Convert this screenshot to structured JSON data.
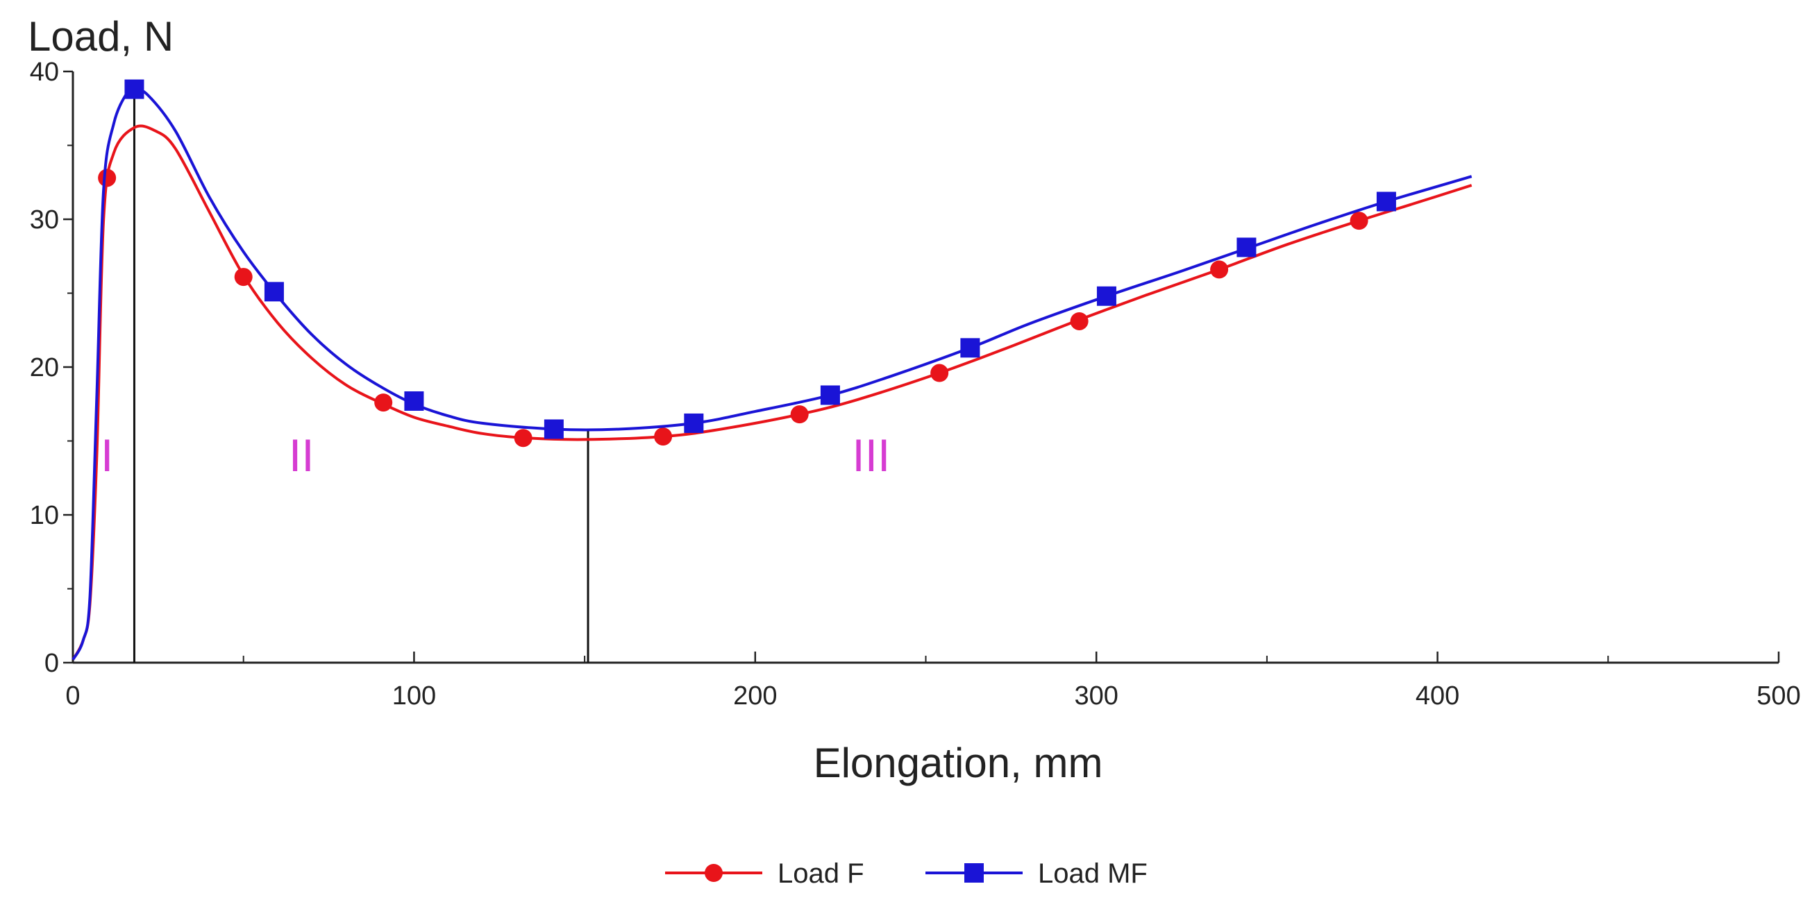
{
  "chart_data": {
    "type": "line",
    "title": "",
    "xlabel": "Elongation, mm",
    "ylabel": "Load, N",
    "xlim": [
      0,
      500
    ],
    "ylim": [
      0,
      40
    ],
    "x_ticks": [
      0,
      100,
      200,
      300,
      400,
      500
    ],
    "x_minor_ticks": [
      50,
      150,
      250,
      350,
      450
    ],
    "y_ticks": [
      0,
      10,
      20,
      30,
      40
    ],
    "y_minor_ticks": [
      5,
      15,
      25,
      35
    ],
    "grid": false,
    "legend_position": "bottom-center",
    "series": [
      {
        "name": "Load F",
        "color": "#e8141a",
        "marker": "circle",
        "curve": [
          [
            0,
            0.2
          ],
          [
            3,
            1.5
          ],
          [
            5,
            4
          ],
          [
            7,
            14
          ],
          [
            9,
            30
          ],
          [
            12,
            34.5
          ],
          [
            18,
            36.2
          ],
          [
            24,
            36
          ],
          [
            30,
            34.8
          ],
          [
            40,
            30.5
          ],
          [
            50,
            26.2
          ],
          [
            60,
            23
          ],
          [
            70,
            20.6
          ],
          [
            80,
            18.8
          ],
          [
            90,
            17.6
          ],
          [
            100,
            16.6
          ],
          [
            110,
            16
          ],
          [
            120,
            15.5
          ],
          [
            133,
            15.2
          ],
          [
            150,
            15.1
          ],
          [
            173,
            15.3
          ],
          [
            190,
            15.8
          ],
          [
            213,
            16.8
          ],
          [
            230,
            17.8
          ],
          [
            254,
            19.6
          ],
          [
            275,
            21.4
          ],
          [
            295,
            23.2
          ],
          [
            315,
            24.9
          ],
          [
            336,
            26.6
          ],
          [
            356,
            28.3
          ],
          [
            377,
            29.9
          ],
          [
            395,
            31.2
          ],
          [
            410,
            32.3
          ]
        ],
        "markers": [
          [
            10,
            32.8
          ],
          [
            50,
            26.1
          ],
          [
            91,
            17.6
          ],
          [
            132,
            15.2
          ],
          [
            173,
            15.3
          ],
          [
            213,
            16.8
          ],
          [
            254,
            19.6
          ],
          [
            295,
            23.1
          ],
          [
            336,
            26.6
          ],
          [
            377,
            29.9
          ]
        ]
      },
      {
        "name": "Load MF",
        "color": "#1a14d6",
        "marker": "square",
        "curve": [
          [
            0,
            0.2
          ],
          [
            3,
            1.5
          ],
          [
            5,
            4.5
          ],
          [
            7,
            18
          ],
          [
            9,
            32
          ],
          [
            12,
            36.5
          ],
          [
            16,
            38.6
          ],
          [
            18,
            38.8
          ],
          [
            22,
            38.4
          ],
          [
            30,
            36
          ],
          [
            40,
            31.5
          ],
          [
            50,
            27.8
          ],
          [
            60,
            24.8
          ],
          [
            70,
            22.2
          ],
          [
            80,
            20.2
          ],
          [
            90,
            18.7
          ],
          [
            100,
            17.5
          ],
          [
            110,
            16.7
          ],
          [
            120,
            16.2
          ],
          [
            141,
            15.8
          ],
          [
            160,
            15.8
          ],
          [
            182,
            16.2
          ],
          [
            200,
            17
          ],
          [
            222,
            18.1
          ],
          [
            240,
            19.4
          ],
          [
            263,
            21.3
          ],
          [
            280,
            22.9
          ],
          [
            303,
            24.8
          ],
          [
            325,
            26.5
          ],
          [
            345,
            28.1
          ],
          [
            365,
            29.7
          ],
          [
            385,
            31.2
          ],
          [
            410,
            32.9
          ]
        ],
        "markers": [
          [
            18,
            38.8
          ],
          [
            59,
            25.1
          ],
          [
            100,
            17.7
          ],
          [
            141,
            15.8
          ],
          [
            182,
            16.2
          ],
          [
            222,
            18.1
          ],
          [
            263,
            21.3
          ],
          [
            303,
            24.8
          ],
          [
            344,
            28.1
          ],
          [
            385,
            31.2
          ]
        ]
      }
    ],
    "vertical_lines": [
      {
        "x": 18,
        "y": 38.8
      },
      {
        "x": 151,
        "y": 15.8
      }
    ],
    "region_labels": [
      {
        "text": "I",
        "x": 10,
        "y": 14,
        "color": "#d63cd2"
      },
      {
        "text": "II",
        "x": 67,
        "y": 14,
        "color": "#d63cd2"
      },
      {
        "text": "III",
        "x": 234,
        "y": 14,
        "color": "#d63cd2"
      }
    ]
  }
}
